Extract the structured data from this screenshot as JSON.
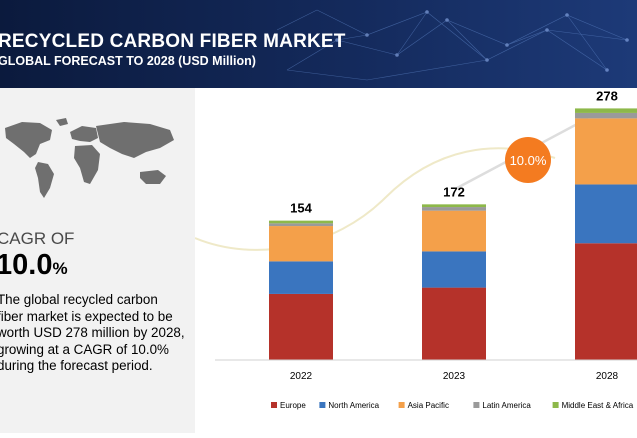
{
  "header": {
    "title": "RECYCLED CARBON FIBER MARKET",
    "subtitle": "GLOBAL FORECAST TO 2028 (USD Million)"
  },
  "sidebar": {
    "cagr_label": "CAGR OF",
    "cagr_value": "10.0",
    "cagr_unit": "%",
    "description": "The global recycled carbon fiber market is expected to be worth USD 278 million by 2028, growing at a CAGR of 10.0% during the forecast period."
  },
  "colors": {
    "header_bg": "#0b1a3d",
    "Europe": "#b5322a",
    "North America": "#3a75bf",
    "Asia Pacific": "#f4a04a",
    "Latin America": "#9a9a9a",
    "Middle East & Africa": "#8db84a",
    "cagr_bubble": "#f47b20"
  },
  "chart_data": {
    "type": "bar",
    "stacked": true,
    "categories": [
      "2022",
      "2023",
      "2028"
    ],
    "totals": [
      154,
      172,
      278
    ],
    "series": [
      {
        "name": "Europe",
        "values": [
          73,
          80,
          129
        ]
      },
      {
        "name": "North America",
        "values": [
          36,
          40,
          65
        ]
      },
      {
        "name": "Asia Pacific",
        "values": [
          39,
          45,
          73
        ]
      },
      {
        "name": "Latin America",
        "values": [
          3,
          4,
          6
        ]
      },
      {
        "name": "Middle East & Africa",
        "values": [
          3,
          3,
          5
        ]
      }
    ],
    "annotation": "10.0%",
    "legend_position": "bottom",
    "grid": false
  }
}
